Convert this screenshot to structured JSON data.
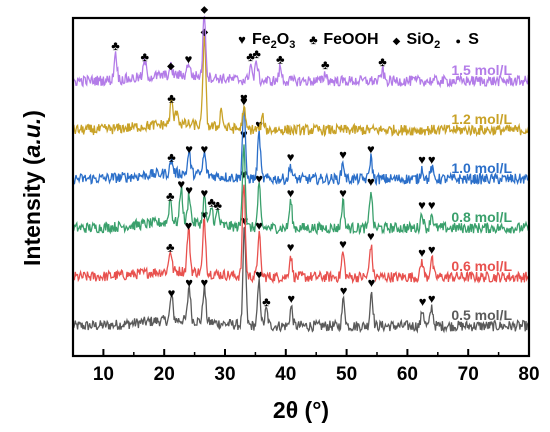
{
  "chart_data": {
    "type": "line",
    "title": "",
    "xlabel": "2θ (°)",
    "ylabel_prefix": "Intensity (",
    "ylabel_unit": "a.u.",
    "ylabel_suffix": ")",
    "xlim": [
      5,
      80
    ],
    "xticks": [
      10,
      20,
      30,
      40,
      50,
      60,
      70,
      80
    ],
    "xtick_labels": [
      "10",
      "20",
      "30",
      "40",
      "50",
      "60",
      "70",
      "80"
    ],
    "y_ticks_shown": false,
    "grid": false,
    "legend": {
      "placement": "top-right",
      "entries": [
        {
          "marker": "heart",
          "name": "Fe",
          "sub1": "2",
          "mid": "O",
          "sub2": "3"
        },
        {
          "marker": "club",
          "name": "FeOOH"
        },
        {
          "marker": "diamond",
          "name": "SiO",
          "sub1": "2"
        },
        {
          "marker": "dot",
          "name": "S"
        }
      ]
    },
    "series": [
      {
        "name": "0.5 mol/L",
        "color": "#5a5a5a",
        "offset": 0.0,
        "amp": 0.55,
        "peaks": [
          [
            21.2,
            0.9
          ],
          [
            24.1,
            1.3
          ],
          [
            26.6,
            1.3
          ],
          [
            33.2,
            3.6
          ],
          [
            35.6,
            1.6
          ],
          [
            36.8,
            0.6
          ],
          [
            40.9,
            0.7
          ],
          [
            49.5,
            1.0
          ],
          [
            54.1,
            1.3
          ],
          [
            62.5,
            0.6
          ],
          [
            64.0,
            0.7
          ]
        ],
        "markers": [
          [
            21.2,
            "heart"
          ],
          [
            24.1,
            "heart"
          ],
          [
            26.6,
            "heart"
          ],
          [
            33.2,
            "heart"
          ],
          [
            35.6,
            "heart"
          ],
          [
            36.8,
            "club"
          ],
          [
            40.9,
            "heart"
          ],
          [
            49.5,
            "heart"
          ],
          [
            54.1,
            "heart"
          ],
          [
            62.5,
            "heart"
          ],
          [
            64.0,
            "heart"
          ]
        ]
      },
      {
        "name": "0.6 mol/L",
        "color": "#e8514e",
        "offset": 1.0,
        "amp": 0.55,
        "peaks": [
          [
            21.0,
            0.8
          ],
          [
            24.0,
            1.6
          ],
          [
            26.6,
            2.0
          ],
          [
            33.1,
            3.5
          ],
          [
            35.6,
            1.6
          ],
          [
            40.8,
            0.8
          ],
          [
            49.4,
            0.9
          ],
          [
            54.0,
            1.2
          ],
          [
            62.4,
            0.6
          ],
          [
            64.0,
            0.7
          ]
        ],
        "markers": [
          [
            21.0,
            "club"
          ],
          [
            24.0,
            "heart"
          ],
          [
            26.6,
            "heart"
          ],
          [
            33.1,
            "heart"
          ],
          [
            35.6,
            "heart"
          ],
          [
            40.8,
            "heart"
          ],
          [
            49.4,
            "heart"
          ],
          [
            54.0,
            "heart"
          ],
          [
            62.4,
            "heart"
          ],
          [
            64.0,
            "heart"
          ]
        ]
      },
      {
        "name": "0.8 mol/L",
        "color": "#3aa06c",
        "offset": 2.0,
        "amp": 0.6,
        "peaks": [
          [
            21.0,
            0.8
          ],
          [
            22.8,
            1.2
          ],
          [
            24.1,
            1.0
          ],
          [
            26.6,
            0.9
          ],
          [
            27.8,
            0.6
          ],
          [
            28.8,
            0.5
          ],
          [
            33.1,
            2.9
          ],
          [
            35.6,
            1.4
          ],
          [
            40.8,
            0.9
          ],
          [
            49.4,
            0.9
          ],
          [
            54.0,
            1.3
          ],
          [
            62.4,
            0.5
          ],
          [
            64.0,
            0.5
          ]
        ],
        "markers": [
          [
            21.0,
            "club"
          ],
          [
            22.8,
            "heart"
          ],
          [
            24.1,
            "heart"
          ],
          [
            26.6,
            "heart"
          ],
          [
            27.8,
            "club"
          ],
          [
            28.8,
            "club"
          ],
          [
            33.1,
            "heart"
          ],
          [
            35.6,
            "heart"
          ],
          [
            40.8,
            "heart"
          ],
          [
            49.4,
            "heart"
          ],
          [
            54.0,
            "heart"
          ],
          [
            62.4,
            "heart"
          ],
          [
            64.0,
            "heart"
          ]
        ]
      },
      {
        "name": "1.0 mol/L",
        "color": "#2b6fc9",
        "offset": 3.0,
        "amp": 0.55,
        "peaks": [
          [
            21.2,
            0.5
          ],
          [
            24.1,
            0.8
          ],
          [
            26.6,
            0.8
          ],
          [
            33.1,
            2.7
          ],
          [
            35.6,
            1.7
          ],
          [
            40.8,
            0.5
          ],
          [
            49.4,
            0.6
          ],
          [
            54.0,
            0.8
          ],
          [
            62.4,
            0.4
          ],
          [
            64.0,
            0.4
          ]
        ],
        "markers": [
          [
            21.2,
            "club"
          ],
          [
            24.1,
            "heart"
          ],
          [
            26.6,
            "heart"
          ],
          [
            33.1,
            "heart"
          ],
          [
            35.6,
            "heart"
          ],
          [
            40.8,
            "heart"
          ],
          [
            49.4,
            "heart"
          ],
          [
            54.0,
            "heart"
          ],
          [
            62.4,
            "heart"
          ],
          [
            64.0,
            "heart"
          ]
        ]
      },
      {
        "name": "1.2 mol/L",
        "color": "#c9a227",
        "offset": 4.0,
        "amp": 0.6,
        "peaks": [
          [
            21.2,
            0.8
          ],
          [
            22.1,
            0.5
          ],
          [
            26.6,
            3.1
          ],
          [
            29.4,
            0.6
          ],
          [
            33.1,
            0.7
          ],
          [
            36.2,
            0.4
          ]
        ],
        "markers": [
          [
            21.2,
            "club"
          ],
          [
            26.6,
            "diamond"
          ],
          [
            33.1,
            "heart"
          ]
        ]
      },
      {
        "name": "1.5 mol/L",
        "color": "#b37ce8",
        "offset": 5.0,
        "amp": 0.55,
        "peaks": [
          [
            12.0,
            1.0
          ],
          [
            16.8,
            0.6
          ],
          [
            21.1,
            0.3
          ],
          [
            24.0,
            0.5
          ],
          [
            26.6,
            2.4
          ],
          [
            34.2,
            0.6
          ],
          [
            35.2,
            0.7
          ],
          [
            39.1,
            0.5
          ],
          [
            46.5,
            0.3
          ],
          [
            55.9,
            0.4
          ]
        ],
        "markers": [
          [
            12.0,
            "club"
          ],
          [
            16.8,
            "club"
          ],
          [
            21.1,
            "diamond"
          ],
          [
            24.0,
            "heart"
          ],
          [
            26.6,
            "diamond"
          ],
          [
            34.2,
            "club"
          ],
          [
            35.2,
            "club"
          ],
          [
            39.1,
            "club"
          ],
          [
            46.5,
            "club"
          ],
          [
            55.9,
            "club"
          ]
        ]
      }
    ]
  }
}
